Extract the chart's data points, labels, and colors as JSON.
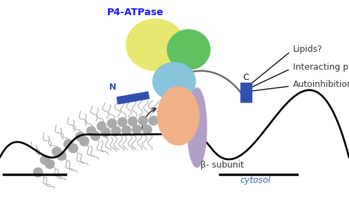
{
  "figsize": [
    5.05,
    2.93
  ],
  "dpi": 100,
  "bg_color": "#ffffff",
  "title_text": "P4-ATPase",
  "title_color": "#1a1aff",
  "label_N": "N",
  "label_C": "C",
  "label_beta": "β- subunit",
  "label_cytosol": "cytosol",
  "annotations": [
    "Lipids?",
    "Interacting proteins?",
    "Autoinhibition?"
  ],
  "yellow_color": "#e8e870",
  "green_color": "#60c060",
  "blue_color": "#88c4dc",
  "orange_color": "#f0b088",
  "purple_color": "#b0a0c8",
  "n_arm_color": "#3050b0",
  "c_arm_color": "#3050b0",
  "lipid_color": "#aaaaaa",
  "line_color": "#111111",
  "arrow_color": "#555555",
  "text_color": "#333333"
}
